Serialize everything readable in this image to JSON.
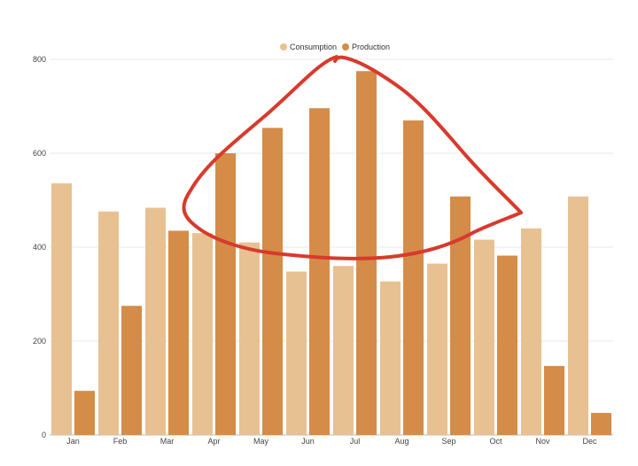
{
  "chart_data": {
    "type": "bar",
    "categories": [
      "Jan",
      "Feb",
      "Mar",
      "Apr",
      "May",
      "Jun",
      "Jul",
      "Aug",
      "Sep",
      "Oct",
      "Nov",
      "Dec"
    ],
    "series": [
      {
        "name": "Consumption",
        "color": "#e8c192",
        "values": [
          536,
          476,
          484,
          430,
          410,
          348,
          360,
          327,
          365,
          416,
          440,
          508
        ]
      },
      {
        "name": "Production",
        "color": "#d48c48",
        "values": [
          94,
          275,
          435,
          600,
          654,
          696,
          775,
          670,
          508,
          382,
          147,
          47
        ]
      }
    ],
    "ylim": [
      0,
      800
    ],
    "yticks": [
      0,
      200,
      400,
      600,
      800
    ],
    "grid": true,
    "legend": "top-center",
    "annotation": {
      "type": "freehand-circle",
      "color": "#d83a2c"
    }
  }
}
